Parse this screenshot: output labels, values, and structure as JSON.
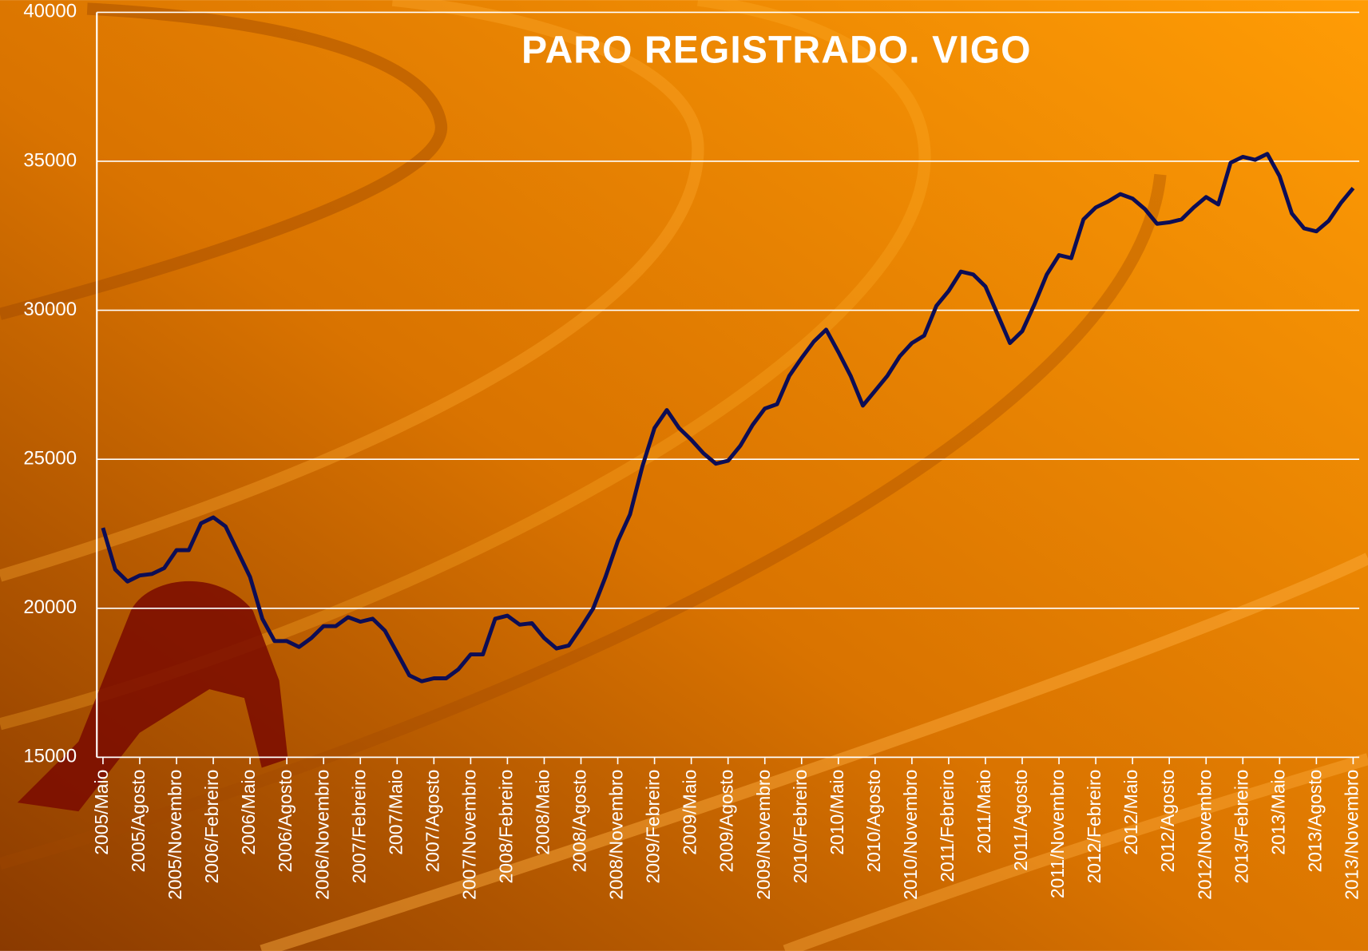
{
  "chart_data": {
    "type": "line",
    "title": "PARO REGISTRADO. VIGO",
    "categories": [
      "2005/Maio",
      null,
      null,
      "2005/Agosto",
      null,
      null,
      "2005/Novembro",
      null,
      null,
      "2006/Febreiro",
      null,
      null,
      "2006/Maio",
      null,
      null,
      "2006/Agosto",
      null,
      null,
      "2006/Novembro",
      null,
      null,
      "2007/Febreiro",
      null,
      null,
      "2007/Maio",
      null,
      null,
      "2007/Agosto",
      null,
      null,
      "2007/Novembro",
      null,
      null,
      "2008/Febreiro",
      null,
      null,
      "2008/Maio",
      null,
      null,
      "2008/Agosto",
      null,
      null,
      "2008/Novembro",
      null,
      null,
      "2009/Febreiro",
      null,
      null,
      "2009/Maio",
      null,
      null,
      "2009/Agosto",
      null,
      null,
      "2009/Novembro",
      null,
      null,
      "2010/Febreiro",
      null,
      null,
      "2010/Maio",
      null,
      null,
      "2010/Agosto",
      null,
      null,
      "2010/Novembro",
      null,
      null,
      "2011/Febreiro",
      null,
      null,
      "2011/Maio",
      null,
      null,
      "2011/Agosto",
      null,
      null,
      "2011/Novembro",
      null,
      null,
      "2012/Febreiro",
      null,
      null,
      "2012/Maio",
      null,
      null,
      "2012/Agosto",
      null,
      null,
      "2012/Novembro",
      null,
      null,
      "2013/Febreiro",
      null,
      null,
      "2013/Maio",
      null,
      null,
      "2013/Agosto",
      null,
      null,
      "2013/Novembro"
    ],
    "values": [
      22700,
      21300,
      20900,
      21100,
      21150,
      21350,
      21950,
      21950,
      22850,
      23050,
      22750,
      21900,
      21050,
      19650,
      18900,
      18900,
      18700,
      19000,
      19400,
      19400,
      19700,
      19550,
      19650,
      19250,
      18500,
      17750,
      17550,
      17650,
      17650,
      17950,
      18450,
      18450,
      19650,
      19750,
      19450,
      19500,
      19000,
      18650,
      18750,
      19350,
      20000,
      21050,
      22250,
      23150,
      24750,
      26050,
      26650,
      26050,
      25650,
      25200,
      24850,
      24950,
      25450,
      26150,
      26700,
      26850,
      27800,
      28400,
      28950,
      29350,
      28600,
      27800,
      26800,
      27300,
      27800,
      28450,
      28900,
      29150,
      30150,
      30650,
      31300,
      31200,
      30800,
      29850,
      28900,
      29300,
      30200,
      31200,
      31850,
      31750,
      33050,
      33450,
      33650,
      33900,
      33750,
      33400,
      32900,
      32950,
      33050,
      33450,
      33800,
      33550,
      34950,
      35150,
      35050,
      35250,
      34500,
      33250,
      32750,
      32650,
      33000,
      33600,
      34100
    ],
    "color": "#0d0d55",
    "ylim": [
      15000,
      40000
    ],
    "yticks": [
      15000,
      20000,
      25000,
      30000,
      35000,
      40000
    ],
    "grid": true
  }
}
